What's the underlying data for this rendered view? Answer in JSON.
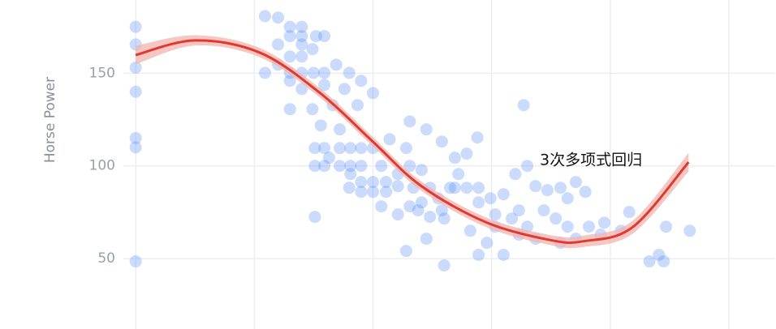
{
  "chart_data": {
    "type": "scatter",
    "y_label": "Horse Power",
    "annotation": "3次多项式回归",
    "xlim": [
      0,
      63.9
    ],
    "ylim": [
      12,
      189.5
    ],
    "yticks": [
      50,
      100,
      150
    ],
    "xgrid": [
      10,
      20,
      30,
      40,
      50,
      60
    ],
    "grid": true,
    "series": [
      {
        "type": "scatter",
        "color": "#5b8ff9",
        "x": [
          10,
          10,
          10,
          10,
          10,
          10,
          10,
          20.9,
          22,
          23,
          24,
          23,
          24,
          25.2,
          25.9,
          22,
          24,
          24.9,
          23,
          24,
          22,
          23,
          24,
          25,
          25.9,
          26.9,
          20.9,
          23,
          24,
          25.9,
          28,
          29,
          30,
          23,
          24.9,
          27.6,
          26.6,
          28.7,
          25.6,
          27.2,
          25.1,
          25.9,
          27.2,
          28.1,
          29,
          30,
          25.1,
          25.9,
          27.2,
          28.1,
          29,
          30.7,
          26.3,
          28.1,
          29,
          30,
          31.1,
          28,
          29,
          30,
          31.1,
          32.1,
          31.4,
          32.8,
          32.1,
          33.1,
          34.1,
          33.4,
          34.8,
          34.1,
          35.5,
          36.5,
          35.8,
          36.9,
          36,
          37.9,
          37.2,
          38.9,
          38.9,
          39.9,
          41,
          40.3,
          41.7,
          42.3,
          43,
          36.9,
          35.8,
          37.9,
          38.8,
          33.1,
          34.5,
          30.7,
          32.1,
          33.1,
          33.8,
          34.8,
          25.1,
          32.8,
          34.5,
          36,
          38.9,
          41,
          42.7,
          43,
          42,
          43.7,
          44.7,
          45.8,
          46.4,
          47.1,
          47.9,
          44.4,
          45.4,
          46.4,
          47.1,
          48.2,
          49.2,
          49.5,
          45.8,
          50.9,
          51.6,
          53.3,
          54.1,
          54.5,
          54.7,
          56.7,
          42.3,
          43.7,
          39.6,
          38.2,
          40.3
        ],
        "values": [
          175,
          165.5,
          153,
          140,
          115,
          110,
          48.5,
          180.8,
          180,
          175,
          175,
          170,
          170,
          170,
          170,
          165.5,
          165.5,
          163,
          159,
          159,
          154.6,
          150.2,
          150.2,
          150.2,
          150.2,
          154.6,
          150.2,
          145.9,
          141.5,
          143.7,
          150.2,
          145.9,
          139.3,
          130.6,
          130.6,
          141.5,
          132.8,
          132.8,
          121.8,
          119.7,
          109.6,
          109.6,
          109.6,
          109.6,
          109.6,
          109.6,
          100,
          100,
          100,
          100,
          100,
          100,
          104.4,
          95.6,
          91.3,
          91.3,
          91.3,
          88.2,
          86,
          86,
          86,
          89.1,
          114.4,
          109.6,
          95.6,
          100,
          97.8,
          88.2,
          88.2,
          80.3,
          82.5,
          88.2,
          76,
          88.2,
          71.6,
          88.2,
          95.6,
          88.2,
          80.3,
          82.5,
          84.7,
          73.8,
          71.6,
          76,
          67.2,
          104.4,
          113.1,
          106.6,
          115.3,
          124,
          119.7,
          78.2,
          73.8,
          78.2,
          76,
          72.5,
          72.5,
          54.1,
          60.7,
          46.3,
          52,
          52,
          132.8,
          100,
          95.6,
          89.1,
          86.9,
          88.2,
          82.5,
          91.3,
          86,
          76,
          71.6,
          67.2,
          60.7,
          67.2,
          62.9,
          69.4,
          58.5,
          65,
          75.1,
          48.5,
          52,
          48.5,
          67.2,
          65,
          62.9,
          60.7,
          58.5,
          65,
          67.2
        ]
      },
      {
        "type": "line",
        "color": "#e0392f",
        "band_color": "#f3b3ae",
        "x": [
          10,
          15,
          20.5,
          25.6,
          30,
          34.1,
          39.6,
          45.1,
          47.8,
          51.9,
          56.6
        ],
        "values": [
          159.8,
          167.7,
          161,
          139,
          113,
          89,
          69.4,
          59.8,
          59.4,
          67,
          102
        ],
        "upper": [
          164.8,
          170.5,
          163.5,
          141.5,
          115.5,
          91.5,
          72,
          62.5,
          62.5,
          70.5,
          107
        ],
        "lower": [
          154.8,
          164.9,
          158.5,
          136.5,
          110.5,
          86.5,
          66.8,
          57.1,
          56.3,
          63.5,
          97
        ]
      }
    ]
  }
}
